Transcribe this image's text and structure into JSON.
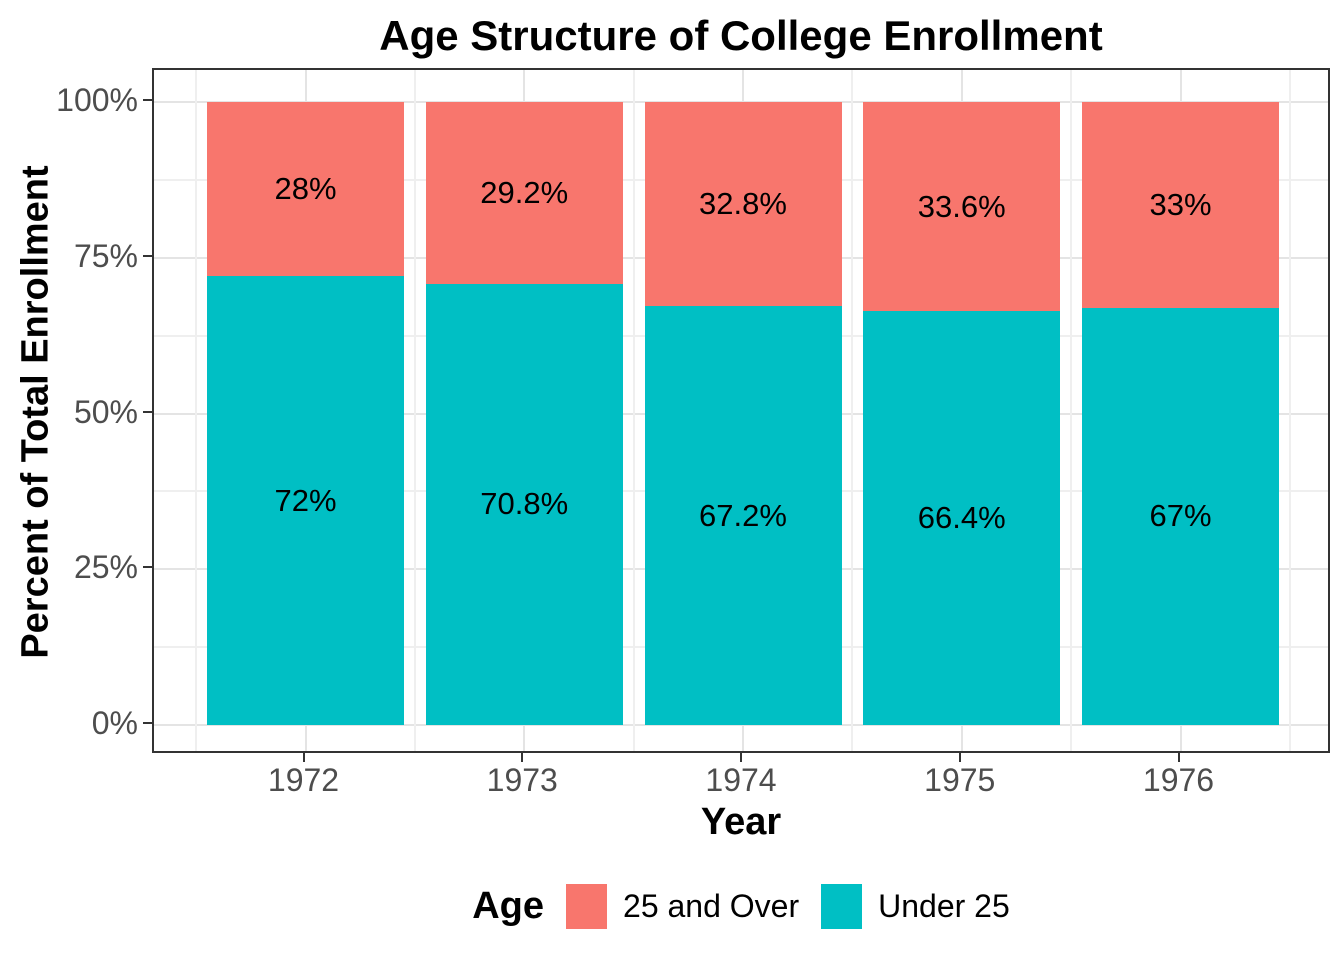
{
  "chart_data": {
    "type": "bar",
    "stacked": true,
    "title": "Age Structure of College Enrollment",
    "xlabel": "Year",
    "ylabel": "Percent of Total Enrollment",
    "categories": [
      "1972",
      "1973",
      "1974",
      "1975",
      "1976"
    ],
    "series": [
      {
        "name": "25 and Over",
        "color": "#F8766D",
        "values": [
          28,
          29.2,
          32.8,
          33.6,
          33
        ],
        "labels": [
          "28%",
          "29.2%",
          "32.8%",
          "33.6%",
          "33%"
        ]
      },
      {
        "name": "Under 25",
        "color": "#00BFC4",
        "values": [
          72,
          70.8,
          67.2,
          66.4,
          67
        ],
        "labels": [
          "72%",
          "70.8%",
          "67.2%",
          "66.4%",
          "67%"
        ]
      }
    ],
    "stack_order_bottom_to_top": [
      "Under 25",
      "25 and Over"
    ],
    "y_axis": {
      "range": [
        0,
        100
      ],
      "ticks": [
        0,
        25,
        50,
        75,
        100
      ],
      "tick_labels": [
        "0%",
        "25%",
        "50%",
        "75%",
        "100%"
      ],
      "minor_ticks": [
        12.5,
        37.5,
        62.5,
        87.5
      ],
      "grid": true
    },
    "legend": {
      "title": "Age",
      "position": "bottom",
      "entries": [
        "25 and Over",
        "Under 25"
      ]
    }
  }
}
